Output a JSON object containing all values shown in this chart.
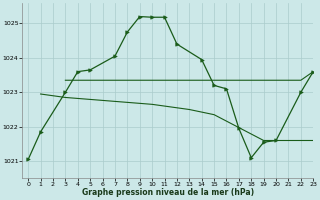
{
  "title": "Graphe pression niveau de la mer (hPa)",
  "bg_color": "#cce8e8",
  "grid_color": "#aacccc",
  "line_color": "#1a5c1a",
  "ylim": [
    1020.5,
    1025.6
  ],
  "xlim": [
    -0.5,
    23
  ],
  "yticks": [
    1021,
    1022,
    1023,
    1024,
    1025
  ],
  "xticks": [
    0,
    1,
    2,
    3,
    4,
    5,
    6,
    7,
    8,
    9,
    10,
    11,
    12,
    13,
    14,
    15,
    16,
    17,
    18,
    19,
    20,
    21,
    22,
    23
  ],
  "series_main_x": [
    0,
    1,
    3,
    4,
    5,
    7,
    8,
    9,
    10,
    11,
    12,
    14,
    15,
    16,
    17,
    18,
    19,
    20,
    22,
    23
  ],
  "series_main_y": [
    1021.05,
    1021.85,
    1023.0,
    1023.6,
    1023.65,
    1024.05,
    1024.75,
    1025.2,
    1025.18,
    1025.18,
    1024.4,
    1023.95,
    1023.2,
    1023.1,
    1021.95,
    1021.1,
    1021.55,
    1021.6,
    1023.0,
    1023.6
  ],
  "series_flat1_x": [
    3,
    4,
    10,
    13,
    14,
    15,
    16,
    19,
    20,
    22,
    23
  ],
  "series_flat1_y": [
    1023.35,
    1023.35,
    1023.35,
    1023.35,
    1023.35,
    1023.35,
    1023.35,
    1023.35,
    1023.35,
    1023.35,
    1023.6
  ],
  "series_flat2_x": [
    1,
    3,
    10,
    13,
    15,
    19,
    20,
    23
  ],
  "series_flat2_y": [
    1022.95,
    1022.85,
    1022.65,
    1022.5,
    1022.35,
    1021.6,
    1021.6,
    1021.6
  ]
}
